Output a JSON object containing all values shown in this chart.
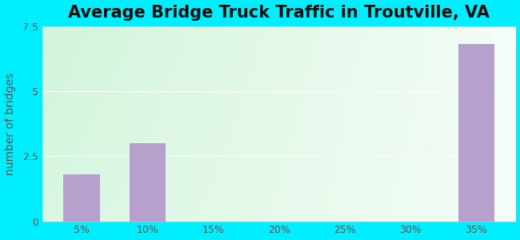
{
  "title": "Average Bridge Truck Traffic in Troutville, VA",
  "categories": [
    "5%",
    "10%",
    "15%",
    "20%",
    "25%",
    "30%",
    "35%"
  ],
  "values": [
    1.8,
    3.0,
    0,
    0,
    0,
    0,
    6.8
  ],
  "bar_color": "#b8a0cc",
  "ylabel": "number of bridges",
  "ylim": [
    0,
    7.5
  ],
  "yticks": [
    0,
    2.5,
    5,
    7.5
  ],
  "outer_bg": "#00eeff",
  "title_fontsize": 15,
  "axis_label_fontsize": 10,
  "tick_fontsize": 9,
  "bar_width": 0.55,
  "plot_bg_topleft": [
    0.82,
    0.96,
    0.86
  ],
  "plot_bg_topright": [
    0.96,
    0.99,
    0.97
  ],
  "plot_bg_bottomleft": [
    0.85,
    0.97,
    0.88
  ],
  "plot_bg_bottomright": [
    0.96,
    0.99,
    0.97
  ]
}
